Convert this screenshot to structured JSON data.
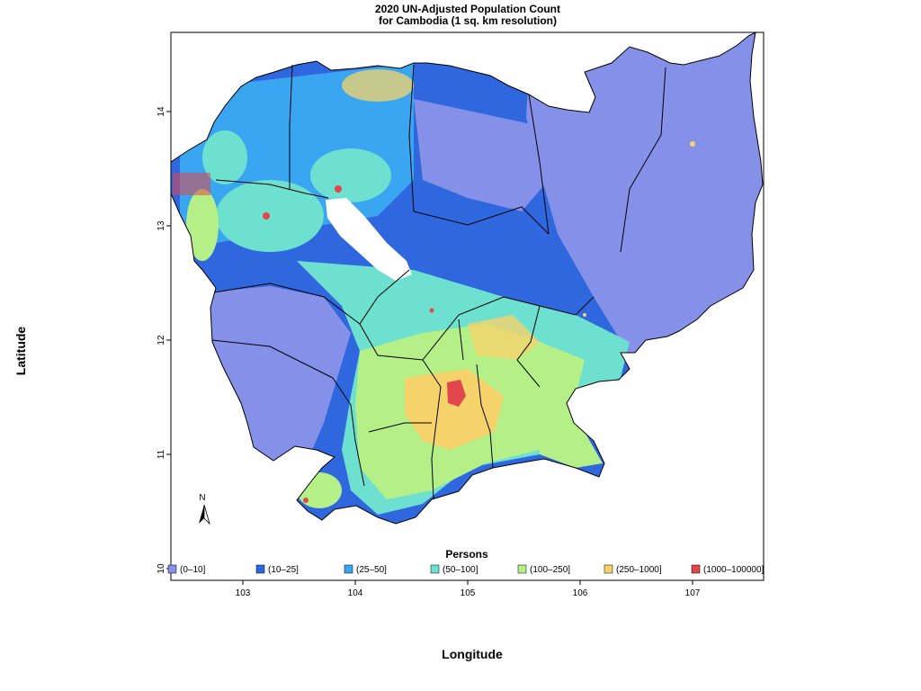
{
  "title_line1": "2020 UN-Adjusted Population Count",
  "title_line2": "for Cambodia (1 sq. km resolution)",
  "axis": {
    "xlabel": "Longitude",
    "ylabel": "Latitude",
    "x_ticks": [
      "103",
      "104",
      "105",
      "106",
      "107"
    ],
    "y_ticks": [
      "10",
      "11",
      "12",
      "13",
      "14"
    ]
  },
  "legend": {
    "title": "Persons",
    "items": [
      {
        "label": "(0–10]",
        "color": "#8590e8"
      },
      {
        "label": "(10–25]",
        "color": "#2f67df"
      },
      {
        "label": "(25–50]",
        "color": "#3aa6f2"
      },
      {
        "label": "(50–100]",
        "color": "#6ee0cf"
      },
      {
        "label": "(100–250]",
        "color": "#b5ef88"
      },
      {
        "label": "(250–1000]",
        "color": "#f5d36a"
      },
      {
        "label": "(1000–100000]",
        "color": "#e2454a"
      }
    ]
  },
  "north_arrow_label": "N"
}
